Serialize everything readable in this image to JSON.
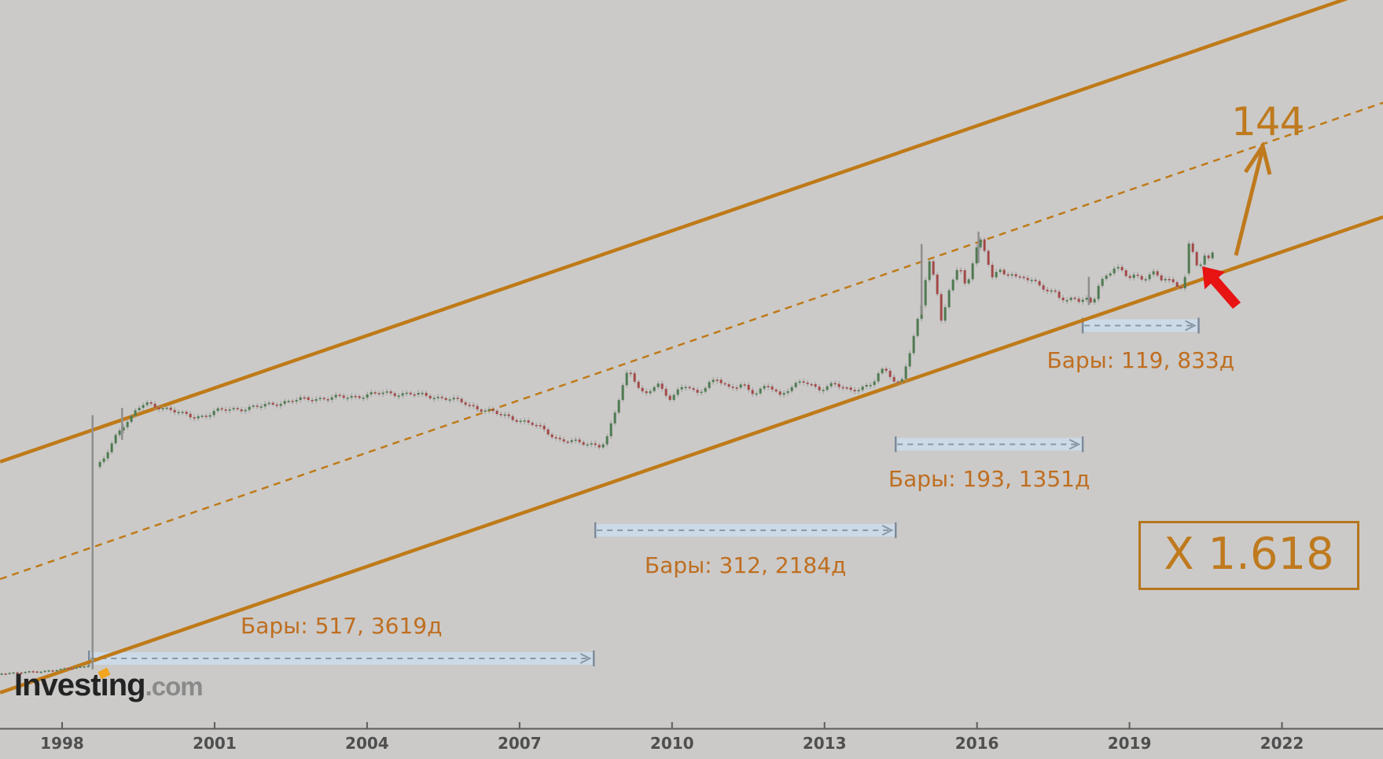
{
  "watermark": {
    "brand_prefix": "Invest",
    "brand_dotted_i": "i",
    "brand_tail": "ng",
    "suffix": ".com"
  },
  "x_axis": {
    "years": [
      "1998",
      "2001",
      "2004",
      "2007",
      "2010",
      "2013",
      "2016",
      "2019",
      "2022"
    ]
  },
  "annotations": {
    "target": "144",
    "multiplier": "X 1.618",
    "bars_labels": [
      "Бары: 517, 3619д",
      "Бары: 312, 2184д",
      "Бары: 193, 1351д",
      "Бары: 119, 833д"
    ]
  },
  "colors": {
    "background": "#cbcac8",
    "channel_line": "#bf7a18",
    "annotation_text": "#bf6e20",
    "band_fill": "#ccdbe9",
    "band_dash": "#8a97a6",
    "band_tick": "#7d8a99",
    "candle_up": "#4e7a50",
    "candle_down": "#a34848",
    "wick": "#9b9b9b",
    "red_arrow": "#e81313",
    "axis_line": "#5c5c5c",
    "axis_text": "#4f4f4f"
  },
  "chart_data": {
    "type": "candlestick",
    "title": "",
    "xlabel": "",
    "ylabel": "",
    "x_ticks": [
      1998,
      2001,
      2004,
      2007,
      2010,
      2013,
      2016,
      2019,
      2022
    ],
    "x_range": [
      1996.8,
      2024.0
    ],
    "y_axis_visible": false,
    "note": "level = vertical position normalized 0 (chart bottom axis) to 1 (top edge); no price scale is visible in the image",
    "channel": {
      "lower": {
        "from": [
          1996.78,
          0.049
        ],
        "to": [
          2023.99,
          0.702
        ],
        "style": "solid"
      },
      "upper": {
        "from": [
          1996.78,
          0.366
        ],
        "to": [
          2023.99,
          1.019
        ],
        "style": "solid"
      },
      "mid_dashed": {
        "from": [
          1996.78,
          0.205
        ],
        "to": [
          2023.99,
          0.859
        ],
        "style": "dashed"
      }
    },
    "measure_arrows": [
      {
        "bars": 517,
        "days": 3619,
        "label": "Бары: 517, 3619д",
        "from_year": 1998.53,
        "to_year": 2008.46,
        "level": 0.096,
        "label_pos": "above"
      },
      {
        "bars": 312,
        "days": 2184,
        "label": "Бары: 312, 2184д",
        "from_year": 2008.49,
        "to_year": 2014.4,
        "level": 0.272,
        "label_pos": "below"
      },
      {
        "bars": 193,
        "days": 1351,
        "label": "Бары: 193, 1351д",
        "from_year": 2014.4,
        "to_year": 2018.08,
        "level": 0.39,
        "label_pos": "below"
      },
      {
        "bars": 119,
        "days": 833,
        "label": "Бары: 119, 833д",
        "from_year": 2018.08,
        "to_year": 2020.36,
        "level": 0.553,
        "label_pos": "below"
      }
    ],
    "target_projection": {
      "label": "144",
      "arrow_from": [
        2021.09,
        0.649
      ],
      "arrow_to": [
        2021.62,
        0.792
      ]
    },
    "fib_multiplier": "X 1.618",
    "long_wicks": [
      {
        "year": 1998.6,
        "level_top": 0.43,
        "level_bottom": 0.081
      },
      {
        "year": 1999.18,
        "level_top": 0.44,
        "level_bottom": 0.396
      },
      {
        "year": 2014.91,
        "level_top": 0.665,
        "level_bottom": 0.568
      },
      {
        "year": 2016.03,
        "level_top": 0.682,
        "level_bottom": 0.639
      },
      {
        "year": 2018.2,
        "level_top": 0.62,
        "level_bottom": 0.581
      }
    ],
    "price_path": [
      [
        1996.78,
        0.076
      ],
      [
        1997.4,
        0.078
      ],
      [
        1998.02,
        0.081
      ],
      [
        1998.45,
        0.085
      ],
      [
        1998.54,
        0.087
      ],
      [
        1998.63,
        0.353
      ],
      [
        1998.79,
        0.366
      ],
      [
        1998.94,
        0.385
      ],
      [
        1999.1,
        0.409
      ],
      [
        1999.22,
        0.42
      ],
      [
        1999.35,
        0.428
      ],
      [
        1999.48,
        0.441
      ],
      [
        1999.64,
        0.446
      ],
      [
        1999.87,
        0.442
      ],
      [
        2000.1,
        0.438
      ],
      [
        2000.37,
        0.429
      ],
      [
        2000.61,
        0.426
      ],
      [
        2000.83,
        0.43
      ],
      [
        2001.03,
        0.436
      ],
      [
        2001.26,
        0.439
      ],
      [
        2001.57,
        0.441
      ],
      [
        2001.88,
        0.442
      ],
      [
        2002.19,
        0.445
      ],
      [
        2002.5,
        0.448
      ],
      [
        2002.81,
        0.451
      ],
      [
        2003.12,
        0.454
      ],
      [
        2003.43,
        0.456
      ],
      [
        2003.74,
        0.457
      ],
      [
        2004.05,
        0.458
      ],
      [
        2004.36,
        0.459
      ],
      [
        2004.67,
        0.458
      ],
      [
        2004.98,
        0.458
      ],
      [
        2005.29,
        0.457
      ],
      [
        2005.6,
        0.454
      ],
      [
        2005.91,
        0.448
      ],
      [
        2006.21,
        0.438
      ],
      [
        2006.52,
        0.431
      ],
      [
        2006.83,
        0.426
      ],
      [
        2007.06,
        0.421
      ],
      [
        2007.3,
        0.417
      ],
      [
        2007.53,
        0.41
      ],
      [
        2007.76,
        0.398
      ],
      [
        2007.99,
        0.394
      ],
      [
        2008.22,
        0.392
      ],
      [
        2008.46,
        0.389
      ],
      [
        2008.61,
        0.386
      ],
      [
        2008.72,
        0.396
      ],
      [
        2008.84,
        0.423
      ],
      [
        2008.97,
        0.455
      ],
      [
        2009.08,
        0.482
      ],
      [
        2009.15,
        0.494
      ],
      [
        2009.25,
        0.482
      ],
      [
        2009.34,
        0.469
      ],
      [
        2009.46,
        0.457
      ],
      [
        2009.59,
        0.466
      ],
      [
        2009.71,
        0.474
      ],
      [
        2009.85,
        0.463
      ],
      [
        2009.97,
        0.455
      ],
      [
        2010.11,
        0.464
      ],
      [
        2010.24,
        0.471
      ],
      [
        2010.36,
        0.464
      ],
      [
        2010.48,
        0.457
      ],
      [
        2010.62,
        0.466
      ],
      [
        2010.75,
        0.475
      ],
      [
        2010.89,
        0.479
      ],
      [
        2011.01,
        0.471
      ],
      [
        2011.13,
        0.464
      ],
      [
        2011.26,
        0.469
      ],
      [
        2011.38,
        0.475
      ],
      [
        2011.5,
        0.467
      ],
      [
        2011.63,
        0.462
      ],
      [
        2011.75,
        0.466
      ],
      [
        2011.88,
        0.471
      ],
      [
        2012.0,
        0.466
      ],
      [
        2012.12,
        0.457
      ],
      [
        2012.25,
        0.466
      ],
      [
        2012.4,
        0.471
      ],
      [
        2012.56,
        0.475
      ],
      [
        2012.71,
        0.469
      ],
      [
        2012.87,
        0.464
      ],
      [
        2013.02,
        0.468
      ],
      [
        2013.18,
        0.474
      ],
      [
        2013.33,
        0.468
      ],
      [
        2013.49,
        0.463
      ],
      [
        2013.64,
        0.467
      ],
      [
        2013.79,
        0.472
      ],
      [
        2013.95,
        0.477
      ],
      [
        2014.07,
        0.488
      ],
      [
        2014.18,
        0.493
      ],
      [
        2014.29,
        0.484
      ],
      [
        2014.41,
        0.472
      ],
      [
        2014.52,
        0.479
      ],
      [
        2014.61,
        0.502
      ],
      [
        2014.72,
        0.525
      ],
      [
        2014.81,
        0.552
      ],
      [
        2014.91,
        0.579
      ],
      [
        2014.98,
        0.612
      ],
      [
        2015.06,
        0.639
      ],
      [
        2015.14,
        0.62
      ],
      [
        2015.21,
        0.601
      ],
      [
        2015.29,
        0.562
      ],
      [
        2015.37,
        0.579
      ],
      [
        2015.46,
        0.603
      ],
      [
        2015.56,
        0.622
      ],
      [
        2015.65,
        0.64
      ],
      [
        2015.74,
        0.612
      ],
      [
        2015.8,
        0.603
      ],
      [
        2015.89,
        0.633
      ],
      [
        2015.97,
        0.66
      ],
      [
        2016.05,
        0.678
      ],
      [
        2016.13,
        0.66
      ],
      [
        2016.2,
        0.644
      ],
      [
        2016.3,
        0.622
      ],
      [
        2016.42,
        0.628
      ],
      [
        2016.54,
        0.62
      ],
      [
        2016.67,
        0.625
      ],
      [
        2016.79,
        0.617
      ],
      [
        2016.91,
        0.62
      ],
      [
        2017.04,
        0.615
      ],
      [
        2017.16,
        0.609
      ],
      [
        2017.29,
        0.603
      ],
      [
        2017.41,
        0.598
      ],
      [
        2017.53,
        0.601
      ],
      [
        2017.66,
        0.593
      ],
      [
        2017.78,
        0.588
      ],
      [
        2017.9,
        0.593
      ],
      [
        2018.03,
        0.586
      ],
      [
        2018.15,
        0.59
      ],
      [
        2018.27,
        0.585
      ],
      [
        2018.4,
        0.612
      ],
      [
        2018.52,
        0.62
      ],
      [
        2018.61,
        0.625
      ],
      [
        2018.71,
        0.631
      ],
      [
        2018.8,
        0.628
      ],
      [
        2018.89,
        0.622
      ],
      [
        2018.98,
        0.618
      ],
      [
        2019.08,
        0.622
      ],
      [
        2019.17,
        0.619
      ],
      [
        2019.26,
        0.616
      ],
      [
        2019.35,
        0.62
      ],
      [
        2019.45,
        0.625
      ],
      [
        2019.54,
        0.62
      ],
      [
        2019.63,
        0.616
      ],
      [
        2019.72,
        0.619
      ],
      [
        2019.82,
        0.615
      ],
      [
        2019.91,
        0.612
      ],
      [
        2020.0,
        0.608
      ],
      [
        2020.08,
        0.614
      ],
      [
        2020.13,
        0.644
      ],
      [
        2020.17,
        0.665
      ],
      [
        2020.22,
        0.66
      ],
      [
        2020.27,
        0.649
      ],
      [
        2020.31,
        0.639
      ],
      [
        2020.36,
        0.633
      ],
      [
        2020.41,
        0.637
      ],
      [
        2020.45,
        0.644
      ],
      [
        2020.5,
        0.649
      ],
      [
        2020.55,
        0.644
      ],
      [
        2020.59,
        0.653
      ],
      [
        2020.64,
        0.657
      ],
      [
        2020.69,
        0.649
      ]
    ]
  }
}
